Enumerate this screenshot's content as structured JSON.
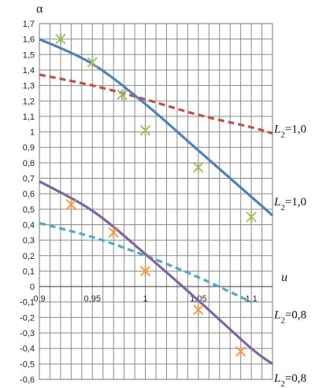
{
  "chart_data": {
    "type": "line",
    "ylabel": "α",
    "xlabel": "u",
    "xlim": [
      0.9,
      1.12
    ],
    "ylim": [
      -0.6,
      1.7
    ],
    "x_ticks": [
      "0,9",
      "0,95",
      "1",
      "1,05",
      "1,1"
    ],
    "y_ticks": [
      "1,7",
      "1,6",
      "1,5",
      "1,4",
      "1,3",
      "1,2",
      "1,1",
      "1",
      "0,9",
      "0,8",
      "0,7",
      "0,6",
      "0,5",
      "0,4",
      "0,3",
      "0,2",
      "0,1",
      "0",
      "-0,1",
      "-0,2",
      "-0,3",
      "-0,4",
      "-0,5",
      "-0,6"
    ],
    "grid": true,
    "series": [
      {
        "id": "red-dashed",
        "style": "dashed",
        "color": "#c0504d",
        "x": [
          0.9,
          0.95,
          1.0,
          1.05,
          1.1,
          1.12
        ],
        "y": [
          1.37,
          1.3,
          1.21,
          1.11,
          1.03,
          0.99
        ]
      },
      {
        "id": "blue-solid",
        "style": "solid",
        "color": "#4f81bd",
        "x": [
          0.9,
          0.95,
          1.0,
          1.05,
          1.1,
          1.12
        ],
        "y": [
          1.6,
          1.44,
          1.18,
          0.88,
          0.58,
          0.46
        ]
      },
      {
        "id": "teal-dashed",
        "style": "dashed",
        "color": "#4bacc6",
        "x": [
          0.9,
          0.95,
          1.0,
          1.05,
          1.1
        ],
        "y": [
          0.41,
          0.32,
          0.2,
          0.06,
          -0.1
        ]
      },
      {
        "id": "purple-solid",
        "style": "solid",
        "color": "#8064a2",
        "x": [
          0.9,
          0.95,
          1.0,
          1.05,
          1.1,
          1.12
        ],
        "y": [
          0.68,
          0.49,
          0.21,
          -0.09,
          -0.4,
          -0.5
        ]
      }
    ],
    "markers": [
      {
        "id": "green-stars",
        "color": "#9bbb59",
        "x": [
          0.92,
          0.95,
          0.978,
          1.0,
          1.05,
          1.1
        ],
        "y": [
          1.6,
          1.45,
          1.24,
          1.01,
          0.77,
          0.45
        ]
      },
      {
        "id": "orange-stars",
        "color": "#f79646",
        "x": [
          0.93,
          0.97,
          1.0,
          1.05,
          1.09
        ],
        "y": [
          0.53,
          0.35,
          0.1,
          -0.15,
          -0.42
        ]
      }
    ],
    "annotations": [
      {
        "id": "ann-1",
        "symbol": "L",
        "sub": "2",
        "rest": "=1,0",
        "x": 1.12,
        "y": 1.02
      },
      {
        "id": "ann-2",
        "symbol": "L",
        "sub": "2",
        "rest": "=1,0",
        "x": 1.12,
        "y": 0.55
      },
      {
        "id": "ann-3",
        "symbol": "L",
        "sub": "2",
        "rest": "=0,8",
        "x": 1.12,
        "y": -0.18
      },
      {
        "id": "ann-4",
        "symbol": "L",
        "sub": "2",
        "rest": "=0,8",
        "x": 1.12,
        "y": -0.59
      }
    ]
  }
}
